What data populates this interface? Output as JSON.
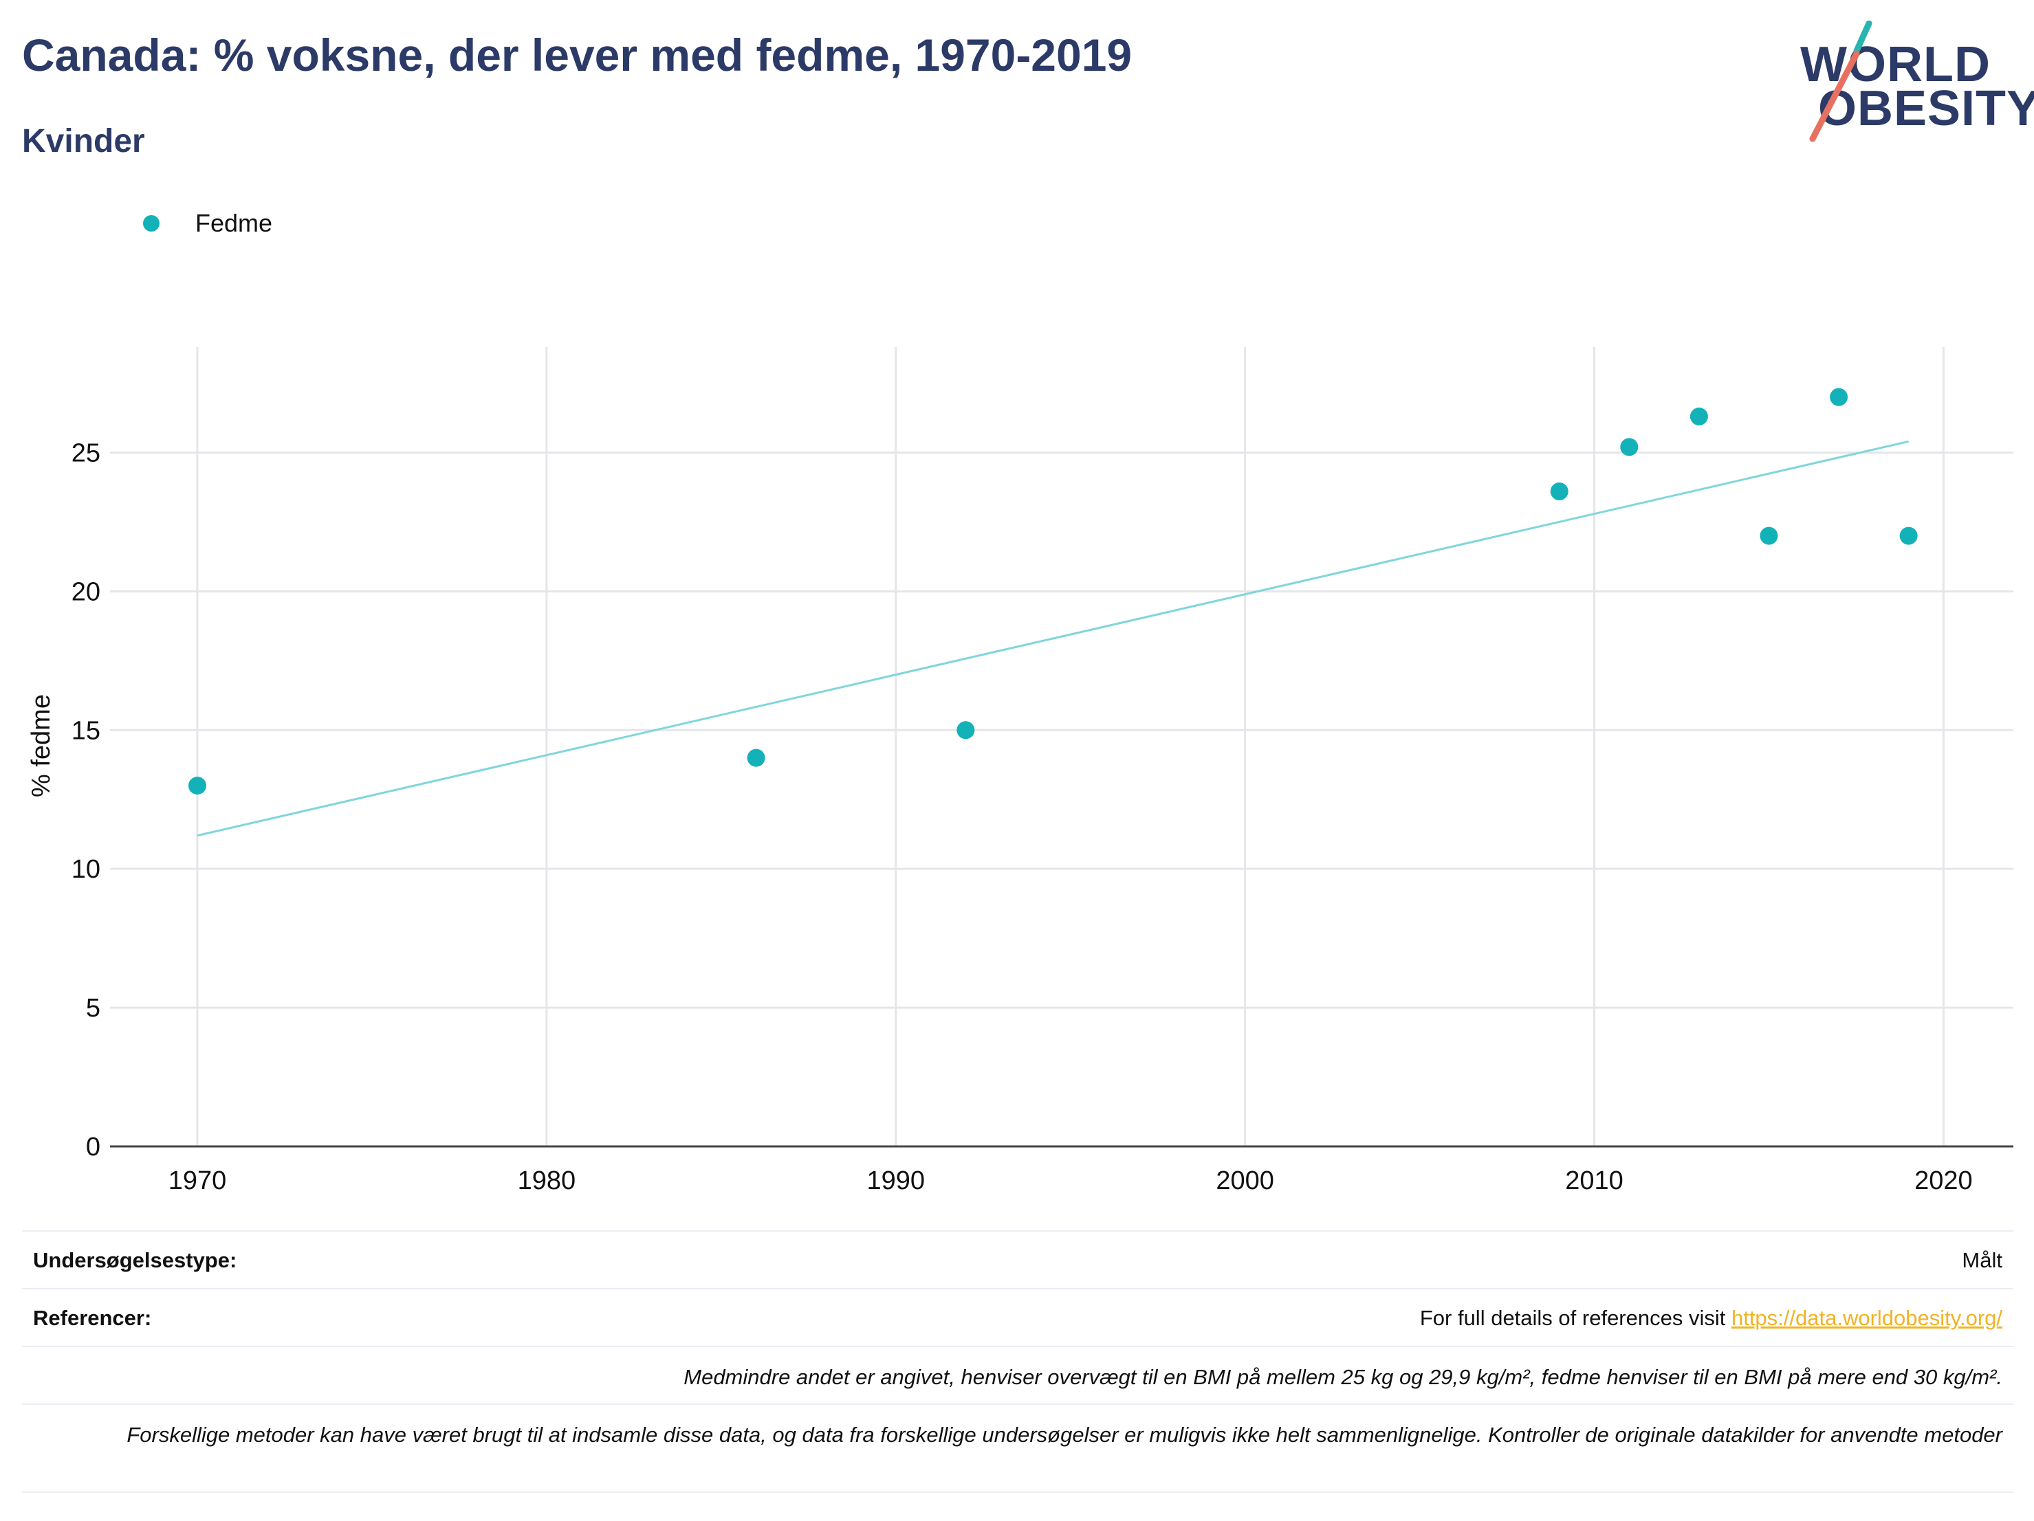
{
  "header": {
    "title": "Canada: % voksne, der lever med fedme, 1970-2019",
    "subtitle": "Kvinder"
  },
  "logo": {
    "line1": "WORLD",
    "line2": "OBESITY",
    "colors": {
      "text": "#2b3a67",
      "accent_teal": "#2ab4ae",
      "accent_coral": "#e8705f"
    }
  },
  "legend": {
    "items": [
      {
        "label": "Fedme",
        "color": "#12b2b8"
      }
    ]
  },
  "chart_data": {
    "type": "scatter",
    "title": "Canada: % voksne, der lever med fedme, 1970-2019",
    "subtitle": "Kvinder",
    "xlabel": "",
    "ylabel": "% fedme",
    "xlim": [
      1967.5,
      2022
    ],
    "ylim": [
      0,
      28.8
    ],
    "x_ticks": [
      1970,
      1980,
      1990,
      2000,
      2010,
      2020
    ],
    "y_ticks": [
      0,
      5,
      10,
      15,
      20,
      25
    ],
    "grid": true,
    "legend_position": "top-left",
    "series": [
      {
        "name": "Fedme",
        "color": "#12b2b8",
        "points": [
          {
            "x": 1970,
            "y": 13
          },
          {
            "x": 1986,
            "y": 14
          },
          {
            "x": 1992,
            "y": 15
          },
          {
            "x": 2009,
            "y": 23.6
          },
          {
            "x": 2011,
            "y": 25.2
          },
          {
            "x": 2013,
            "y": 26.3
          },
          {
            "x": 2015,
            "y": 22
          },
          {
            "x": 2017,
            "y": 27
          },
          {
            "x": 2019,
            "y": 22
          }
        ]
      }
    ],
    "trendline": {
      "color": "#7fd6da",
      "start": {
        "x": 1970,
        "y": 11.2
      },
      "end": {
        "x": 2019,
        "y": 25.4
      }
    }
  },
  "footer": {
    "survey_label": "Undersøgelsestype:",
    "survey_value": "Målt",
    "references_label": "Referencer:",
    "references_text": "For full details of references visit ",
    "references_link": "https://data.worldobesity.org/",
    "note_bmi": "Medmindre andet er angivet, henviser overvægt til en BMI på mellem 25 kg og 29,9 kg/m², fedme henviser til en BMI på mere end 30 kg/m².",
    "note_methods": "Forskellige metoder kan have været brugt til at indsamle disse data, og data fra forskellige undersøgelser er muligvis ikke helt sammenlignelige. Kontroller de originale datakilder for anvendte metoder"
  }
}
